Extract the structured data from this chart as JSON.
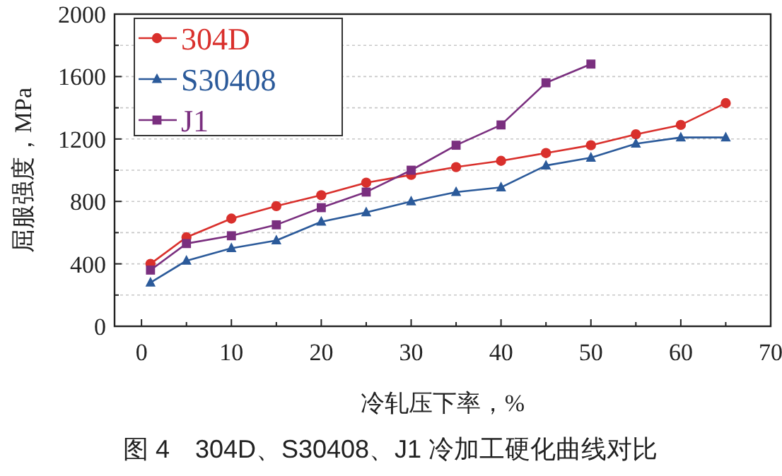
{
  "chart_data": {
    "type": "line",
    "title": "图 4　304D、S30408、J1 冷加工硬化曲线对比",
    "xlabel": "冷轧压下率，%",
    "ylabel": "屈服强度，MPa",
    "xlim": [
      -3,
      70
    ],
    "xticks": [
      0,
      10,
      20,
      30,
      40,
      50,
      60,
      70
    ],
    "ylim": [
      0,
      2000
    ],
    "yticks": [
      0,
      400,
      800,
      1200,
      1600,
      2000
    ],
    "grid": "y",
    "legend": "top left",
    "series": [
      {
        "name": "304D",
        "color": "#d9302c",
        "marker": "circle",
        "x": [
          1,
          5,
          10,
          15,
          20,
          25,
          30,
          35,
          40,
          45,
          50,
          55,
          60,
          65
        ],
        "values": [
          400,
          570,
          690,
          770,
          840,
          920,
          970,
          1020,
          1060,
          1110,
          1160,
          1230,
          1290,
          1430
        ]
      },
      {
        "name": "S30408",
        "color": "#2b5a9a",
        "marker": "triangle",
        "x": [
          1,
          5,
          10,
          15,
          20,
          25,
          30,
          35,
          40,
          45,
          50,
          55,
          60,
          65
        ],
        "values": [
          280,
          420,
          500,
          550,
          670,
          730,
          800,
          860,
          890,
          1030,
          1080,
          1170,
          1210,
          1210
        ]
      },
      {
        "name": "J1",
        "color": "#7a2f7f",
        "marker": "square",
        "x": [
          1,
          5,
          10,
          15,
          20,
          25,
          30,
          35,
          40,
          45,
          50
        ],
        "values": [
          360,
          530,
          580,
          650,
          760,
          860,
          1000,
          1160,
          1290,
          1560,
          1680
        ]
      }
    ]
  }
}
